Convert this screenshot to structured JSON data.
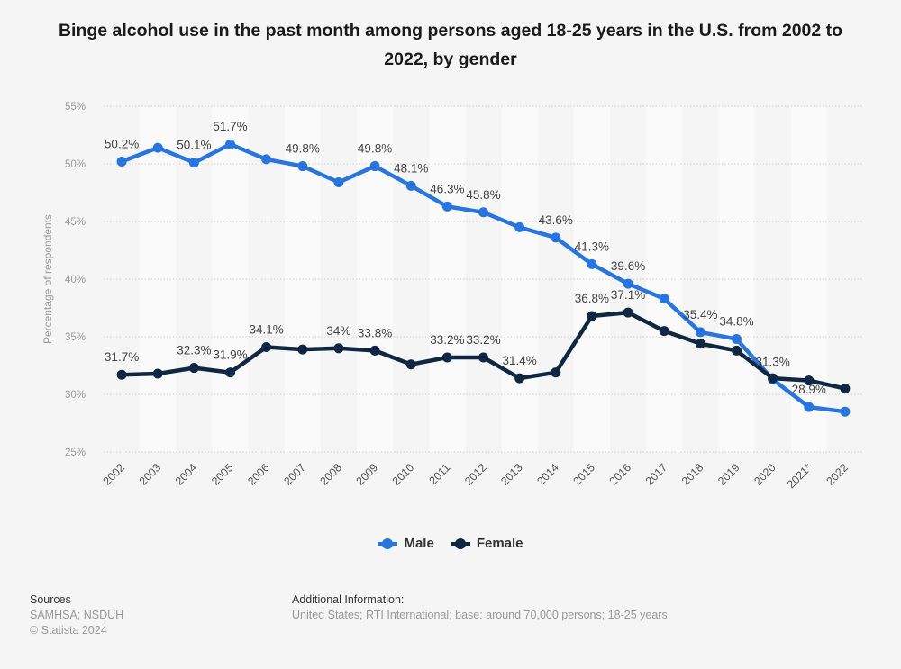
{
  "chart_data": {
    "type": "line",
    "title": "Binge alcohol use in the past month among persons aged 18-25 years in the U.S. from 2002 to 2022, by gender",
    "xlabel": "",
    "ylabel": "Percentage of respondents",
    "ylim": [
      25,
      55
    ],
    "yticks": [
      25,
      30,
      35,
      40,
      45,
      50,
      55
    ],
    "ytick_labels": [
      "25%",
      "30%",
      "35%",
      "40%",
      "45%",
      "50%",
      "55%"
    ],
    "grid": true,
    "legend_position": "bottom",
    "categories": [
      "2002",
      "2003",
      "2004",
      "2005",
      "2006",
      "2007",
      "2008",
      "2009",
      "2010",
      "2011",
      "2012",
      "2013",
      "2014",
      "2015",
      "2016",
      "2017",
      "2018",
      "2019",
      "2020",
      "2021*",
      "2022"
    ],
    "series": [
      {
        "name": "Male",
        "color": "#2876dd",
        "values": [
          50.2,
          51.4,
          50.1,
          51.7,
          50.4,
          49.8,
          48.4,
          49.8,
          48.1,
          46.3,
          45.8,
          44.5,
          43.6,
          41.3,
          39.6,
          38.3,
          35.4,
          34.8,
          31.3,
          28.9,
          28.5
        ],
        "labels": [
          "50.2%",
          "",
          "50.1%",
          "51.7%",
          "",
          "49.8%",
          "",
          "49.8%",
          "48.1%",
          "46.3%",
          "45.8%",
          "",
          "43.6%",
          "41.3%",
          "39.6%",
          "",
          "35.4%",
          "34.8%",
          "31.3%",
          "28.9%",
          ""
        ]
      },
      {
        "name": "Female",
        "color": "#0f2742",
        "values": [
          31.7,
          31.8,
          32.3,
          31.9,
          34.1,
          33.9,
          34.0,
          33.8,
          32.6,
          33.2,
          33.2,
          31.4,
          31.9,
          36.8,
          37.1,
          35.5,
          34.4,
          33.8,
          31.4,
          31.2,
          30.5
        ],
        "labels": [
          "31.7%",
          "",
          "32.3%",
          "31.9%",
          "34.1%",
          "",
          "34%",
          "33.8%",
          "",
          "33.2%",
          "33.2%",
          "31.4%",
          "",
          "36.8%",
          "37.1%",
          "",
          "",
          "",
          "",
          "",
          ""
        ]
      }
    ]
  },
  "legend": {
    "male": "Male",
    "female": "Female"
  },
  "footer": {
    "sources_heading": "Sources",
    "sources_text": "SAMHSA; NSDUH",
    "copyright": "© Statista 2024",
    "additional_heading": "Additional Information:",
    "additional_text": "United States; RTI International; base: around 70,000 persons; 18-25 years"
  }
}
